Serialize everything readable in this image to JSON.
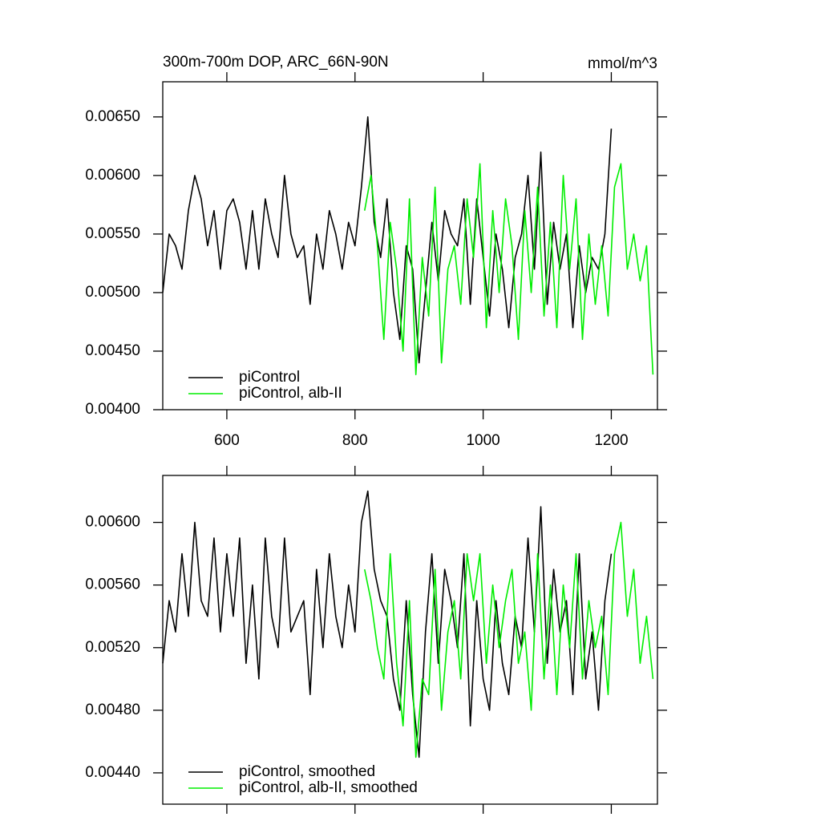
{
  "chart_data": [
    {
      "type": "line",
      "title": "300m-700m DOP, ARC_66N-90N",
      "right_title": "mmol/m^3",
      "xlim": [
        500,
        1272
      ],
      "ylim": [
        0.004,
        0.0068
      ],
      "xticks": [
        600,
        800,
        1000,
        1200
      ],
      "yticks": [
        {
          "value": 0.004,
          "label": "0.00400"
        },
        {
          "value": 0.0045,
          "label": "0.00450"
        },
        {
          "value": 0.005,
          "label": "0.00500"
        },
        {
          "value": 0.0055,
          "label": "0.00550"
        },
        {
          "value": 0.006,
          "label": "0.00600"
        },
        {
          "value": 0.0065,
          "label": "0.00650"
        }
      ],
      "legend": "lower left",
      "series": [
        {
          "name": "piControl",
          "color": "#000000",
          "x": [
            500,
            510,
            520,
            530,
            540,
            550,
            560,
            570,
            580,
            590,
            600,
            610,
            620,
            630,
            640,
            650,
            660,
            670,
            680,
            690,
            700,
            710,
            720,
            730,
            740,
            750,
            760,
            770,
            780,
            790,
            800,
            810,
            820,
            830,
            840,
            850,
            860,
            870,
            880,
            890,
            900,
            910,
            920,
            930,
            940,
            950,
            960,
            970,
            980,
            990,
            1000,
            1010,
            1020,
            1030,
            1040,
            1050,
            1060,
            1070,
            1080,
            1090,
            1100,
            1110,
            1120,
            1130,
            1140,
            1150,
            1160,
            1170,
            1180,
            1190,
            1200
          ],
          "values": [
            0.005,
            0.0055,
            0.0054,
            0.0052,
            0.0057,
            0.006,
            0.0058,
            0.0054,
            0.0057,
            0.0052,
            0.0057,
            0.0058,
            0.0056,
            0.0052,
            0.0057,
            0.0052,
            0.0058,
            0.0055,
            0.0053,
            0.006,
            0.0055,
            0.0053,
            0.0054,
            0.0049,
            0.0055,
            0.0052,
            0.0057,
            0.0055,
            0.0052,
            0.0056,
            0.0054,
            0.0059,
            0.0065,
            0.0056,
            0.0053,
            0.0058,
            0.005,
            0.0046,
            0.0054,
            0.0052,
            0.0044,
            0.005,
            0.0056,
            0.0051,
            0.0057,
            0.0055,
            0.0054,
            0.0058,
            0.0049,
            0.0058,
            0.0053,
            0.0048,
            0.0055,
            0.0052,
            0.0047,
            0.0053,
            0.0055,
            0.006,
            0.0052,
            0.0062,
            0.0049,
            0.0056,
            0.0052,
            0.0055,
            0.0047,
            0.0054,
            0.005,
            0.0053,
            0.0052,
            0.0055,
            0.0064
          ]
        },
        {
          "name": "piControl, alb-II",
          "color": "#00ee00",
          "x": [
            815,
            825,
            835,
            845,
            855,
            865,
            875,
            885,
            895,
            905,
            915,
            925,
            935,
            945,
            955,
            965,
            975,
            985,
            995,
            1005,
            1015,
            1025,
            1035,
            1045,
            1055,
            1065,
            1075,
            1085,
            1095,
            1105,
            1115,
            1125,
            1135,
            1145,
            1155,
            1165,
            1175,
            1185,
            1195,
            1205,
            1215,
            1225,
            1235,
            1245,
            1255,
            1265
          ],
          "values": [
            0.0057,
            0.006,
            0.0054,
            0.0046,
            0.0056,
            0.0052,
            0.0045,
            0.0058,
            0.0043,
            0.0053,
            0.0048,
            0.0059,
            0.0044,
            0.0052,
            0.0054,
            0.0049,
            0.0058,
            0.0053,
            0.0061,
            0.0047,
            0.0057,
            0.005,
            0.0058,
            0.0054,
            0.0046,
            0.0057,
            0.005,
            0.0059,
            0.0048,
            0.0056,
            0.0047,
            0.006,
            0.0052,
            0.0058,
            0.0046,
            0.0055,
            0.0049,
            0.0054,
            0.0048,
            0.0059,
            0.0061,
            0.0052,
            0.0055,
            0.0051,
            0.0054,
            0.0043
          ]
        }
      ]
    },
    {
      "type": "line",
      "xlim": [
        500,
        1272
      ],
      "ylim": [
        0.0042,
        0.0063
      ],
      "xticks": [
        600,
        800,
        1000,
        1200
      ],
      "yticks": [
        {
          "value": 0.0044,
          "label": "0.00440"
        },
        {
          "value": 0.0048,
          "label": "0.00480"
        },
        {
          "value": 0.0052,
          "label": "0.00520"
        },
        {
          "value": 0.0056,
          "label": "0.00560"
        },
        {
          "value": 0.006,
          "label": "0.00600"
        }
      ],
      "legend": "lower left",
      "series": [
        {
          "name": "piControl, smoothed",
          "color": "#000000",
          "x": [
            500,
            510,
            520,
            530,
            540,
            550,
            560,
            570,
            580,
            590,
            600,
            610,
            620,
            630,
            640,
            650,
            660,
            670,
            680,
            690,
            700,
            710,
            720,
            730,
            740,
            750,
            760,
            770,
            780,
            790,
            800,
            810,
            820,
            830,
            840,
            850,
            860,
            870,
            880,
            890,
            900,
            910,
            920,
            930,
            940,
            950,
            960,
            970,
            980,
            990,
            1000,
            1010,
            1020,
            1030,
            1040,
            1050,
            1060,
            1070,
            1080,
            1090,
            1100,
            1110,
            1120,
            1130,
            1140,
            1150,
            1160,
            1170,
            1180,
            1190,
            1200
          ],
          "values": [
            0.0051,
            0.0055,
            0.0053,
            0.0058,
            0.0054,
            0.006,
            0.0055,
            0.0054,
            0.0059,
            0.0053,
            0.0058,
            0.0054,
            0.0059,
            0.0051,
            0.0056,
            0.005,
            0.0059,
            0.0054,
            0.0052,
            0.0059,
            0.0053,
            0.0054,
            0.0055,
            0.0049,
            0.0057,
            0.0052,
            0.0058,
            0.0054,
            0.0052,
            0.0056,
            0.0053,
            0.006,
            0.0062,
            0.0057,
            0.0055,
            0.0054,
            0.005,
            0.0048,
            0.0055,
            0.0049,
            0.0045,
            0.0053,
            0.0058,
            0.0051,
            0.0057,
            0.0055,
            0.0052,
            0.0058,
            0.0047,
            0.0055,
            0.005,
            0.0048,
            0.0055,
            0.0051,
            0.0049,
            0.0054,
            0.0052,
            0.0059,
            0.0053,
            0.0061,
            0.0051,
            0.0057,
            0.0053,
            0.0055,
            0.0049,
            0.0058,
            0.005,
            0.0053,
            0.0048,
            0.0055,
            0.0058
          ]
        },
        {
          "name": "piControl, alb-II, smoothed",
          "color": "#00ee00",
          "x": [
            815,
            825,
            835,
            845,
            855,
            865,
            875,
            885,
            895,
            905,
            915,
            925,
            935,
            945,
            955,
            965,
            975,
            985,
            995,
            1005,
            1015,
            1025,
            1035,
            1045,
            1055,
            1065,
            1075,
            1085,
            1095,
            1105,
            1115,
            1125,
            1135,
            1145,
            1155,
            1165,
            1175,
            1185,
            1195,
            1205,
            1215,
            1225,
            1235,
            1245,
            1255,
            1265
          ],
          "values": [
            0.0057,
            0.0055,
            0.0052,
            0.005,
            0.0058,
            0.0051,
            0.0047,
            0.0055,
            0.0045,
            0.005,
            0.0049,
            0.0057,
            0.0048,
            0.0053,
            0.0055,
            0.005,
            0.0058,
            0.0055,
            0.0058,
            0.0051,
            0.0056,
            0.0052,
            0.0055,
            0.0057,
            0.0051,
            0.0053,
            0.0048,
            0.0058,
            0.005,
            0.0056,
            0.0049,
            0.0056,
            0.0052,
            0.0058,
            0.005,
            0.0055,
            0.0052,
            0.0054,
            0.0049,
            0.0058,
            0.006,
            0.0054,
            0.0057,
            0.0051,
            0.0054,
            0.005
          ]
        }
      ]
    }
  ]
}
